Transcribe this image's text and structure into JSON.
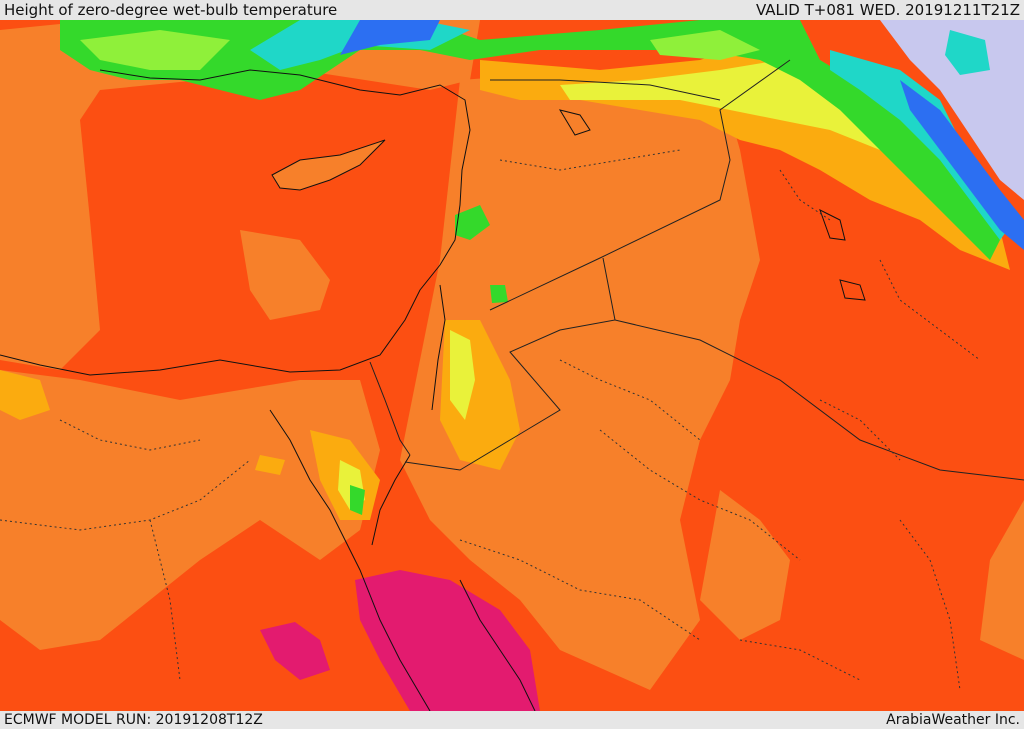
{
  "header": {
    "title": "Height of zero-degree wet-bulb temperature",
    "valid_time": "VALID T+081 WED. 20191211T21Z"
  },
  "footer": {
    "model_run": "ECMWF MODEL RUN: 20191208T12Z",
    "credit": "ArabiaWeather Inc."
  },
  "palette": {
    "background": "#e6e6e6",
    "deep_orange": "#fc4f12",
    "orange": "#f7802a",
    "amber": "#fbab0f",
    "yellow": "#e9f23a",
    "green": "#34d92b",
    "light_green": "#8ff03a",
    "cyan": "#1fd7c8",
    "blue": "#2c6ff2",
    "lavender": "#c8c8ee",
    "magenta": "#e31b6f"
  }
}
